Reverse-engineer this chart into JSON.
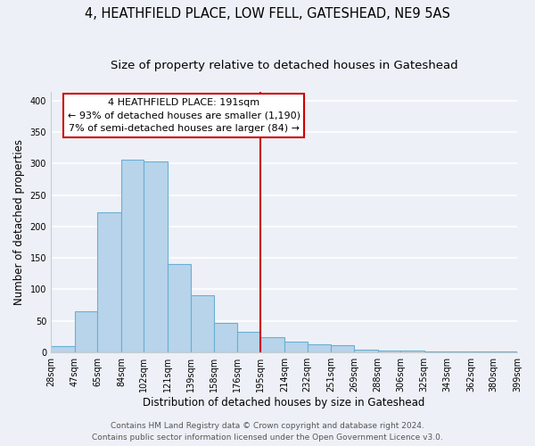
{
  "title": "4, HEATHFIELD PLACE, LOW FELL, GATESHEAD, NE9 5AS",
  "subtitle": "Size of property relative to detached houses in Gateshead",
  "xlabel": "Distribution of detached houses by size in Gateshead",
  "ylabel": "Number of detached properties",
  "bar_edges": [
    28,
    47,
    65,
    84,
    102,
    121,
    139,
    158,
    176,
    195,
    214,
    232,
    251,
    269,
    288,
    306,
    325,
    343,
    362,
    380,
    399
  ],
  "bar_heights": [
    10,
    65,
    223,
    306,
    303,
    140,
    90,
    47,
    32,
    24,
    17,
    13,
    11,
    4,
    3,
    2,
    1,
    1,
    1,
    1
  ],
  "bar_color": "#b8d4ea",
  "bar_edgecolor": "#6aafd4",
  "vline_x": 195,
  "vline_color": "#cc0000",
  "annotation_title": "4 HEATHFIELD PLACE: 191sqm",
  "annotation_line1": "← 93% of detached houses are smaller (1,190)",
  "annotation_line2": "7% of semi-detached houses are larger (84) →",
  "annotation_box_facecolor": "#ffffff",
  "annotation_box_edgecolor": "#cc0000",
  "ylim": [
    0,
    415
  ],
  "yticks": [
    0,
    50,
    100,
    150,
    200,
    250,
    300,
    350,
    400
  ],
  "xtick_labels": [
    "28sqm",
    "47sqm",
    "65sqm",
    "84sqm",
    "102sqm",
    "121sqm",
    "139sqm",
    "158sqm",
    "176sqm",
    "195sqm",
    "214sqm",
    "232sqm",
    "251sqm",
    "269sqm",
    "288sqm",
    "306sqm",
    "325sqm",
    "343sqm",
    "362sqm",
    "380sqm",
    "399sqm"
  ],
  "footer1": "Contains HM Land Registry data © Crown copyright and database right 2024.",
  "footer2": "Contains public sector information licensed under the Open Government Licence v3.0.",
  "background_color": "#edf1f7",
  "grid_color": "#ffffff",
  "title_fontsize": 10.5,
  "subtitle_fontsize": 9.5,
  "axis_label_fontsize": 8.5,
  "tick_fontsize": 7,
  "annotation_fontsize": 8,
  "footer_fontsize": 6.5
}
